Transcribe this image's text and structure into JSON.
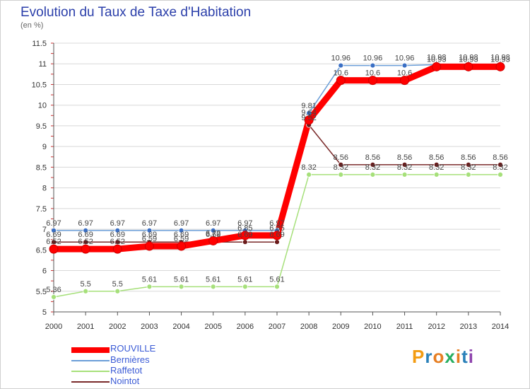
{
  "header": {
    "title": "Evolution du Taux de Taxe d'Habitation",
    "unit": "(en %)"
  },
  "logo": "Proxiti",
  "chart_data": {
    "type": "line",
    "x": [
      "2000",
      "2001",
      "2002",
      "2003",
      "2004",
      "2005",
      "2006",
      "2007",
      "2008",
      "2009",
      "2010",
      "2011",
      "2012",
      "2013",
      "2014"
    ],
    "ylim": [
      5,
      11.5
    ],
    "yticks": [
      "5",
      "5.5",
      "6",
      "6.5",
      "7",
      "7.5",
      "8",
      "8.5",
      "9",
      "9.5",
      "10",
      "10.5",
      "11",
      "11.5"
    ],
    "series": [
      {
        "name": "ROUVILLE",
        "color": "#ff0000",
        "values": [
          6.52,
          6.52,
          6.52,
          6.59,
          6.59,
          6.72,
          6.85,
          6.85,
          9.64,
          10.6,
          10.6,
          10.6,
          10.93,
          10.93,
          10.93
        ],
        "labels": [
          "6.52",
          "6.52",
          "6.52",
          "6.59",
          "6.59",
          "6.72",
          "6.85",
          "6.85",
          "9.64",
          "10.6",
          "10.6",
          "10.6",
          "10.93",
          "10.93",
          "10.93"
        ]
      },
      {
        "name": "Bernières",
        "color": "#6b9ed8",
        "values": [
          6.97,
          6.97,
          6.97,
          6.97,
          6.97,
          6.97,
          6.97,
          6.97,
          9.81,
          10.96,
          10.96,
          10.96,
          10.98,
          10.98,
          10.98
        ],
        "labels": [
          "6.97",
          "6.97",
          "6.97",
          "6.97",
          "6.97",
          "6.97",
          "6.97",
          "6.97",
          "9.81",
          "10.96",
          "10.96",
          "10.96",
          "10.98",
          "10.98",
          "10.98"
        ]
      },
      {
        "name": "Raffetot",
        "color": "#a6e07a",
        "values": [
          5.36,
          5.5,
          5.5,
          5.61,
          5.61,
          5.61,
          5.61,
          5.61,
          8.32,
          8.32,
          8.32,
          8.32,
          8.32,
          8.32,
          8.32
        ],
        "labels": [
          "5.36",
          "5.5",
          "5.5",
          "5.61",
          "5.61",
          "5.61",
          "5.61",
          "5.61",
          "8.32",
          "8.32",
          "8.32",
          "8.32",
          "8.32",
          "8.32",
          "8.32"
        ]
      },
      {
        "name": "Nointot",
        "color": "#7a2a2a",
        "values": [
          6.69,
          6.69,
          6.69,
          6.69,
          6.69,
          6.69,
          6.69,
          6.69,
          9.52,
          8.56,
          8.56,
          8.56,
          8.56,
          8.56,
          8.56
        ],
        "labels": [
          "6.69",
          "6.69",
          "6.69",
          "6.69",
          "6.69",
          "6.69",
          "6.69",
          "6.69",
          "9.52",
          "8.56",
          "8.56",
          "8.56",
          "8.56",
          "8.56",
          "8.56"
        ]
      }
    ]
  }
}
